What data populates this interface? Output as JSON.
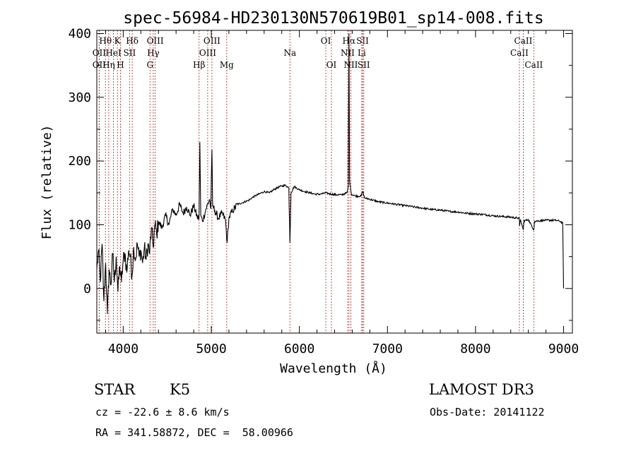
{
  "chart_data": {
    "type": "line",
    "title": "spec-56984-HD230130N570619B01_sp14-008.fits",
    "xlabel": "Wavelength (Å)",
    "ylabel": "Flux (relative)",
    "xlim": [
      3700,
      9100
    ],
    "ylim": [
      -70,
      405
    ],
    "x_ticks": [
      4000,
      5000,
      6000,
      7000,
      8000,
      9000
    ],
    "y_ticks": [
      0,
      100,
      200,
      300,
      400
    ],
    "spectrum_control_points": [
      [
        3700,
        30
      ],
      [
        3720,
        60
      ],
      [
        3740,
        10
      ],
      [
        3760,
        70
      ],
      [
        3780,
        -20
      ],
      [
        3800,
        40
      ],
      [
        3820,
        -40
      ],
      [
        3840,
        30
      ],
      [
        3860,
        5
      ],
      [
        3880,
        55
      ],
      [
        3900,
        10
      ],
      [
        3920,
        50
      ],
      [
        3940,
        -5
      ],
      [
        3960,
        35
      ],
      [
        3980,
        10
      ],
      [
        4000,
        45
      ],
      [
        4020,
        55
      ],
      [
        4040,
        25
      ],
      [
        4060,
        60
      ],
      [
        4080,
        50
      ],
      [
        4100,
        20
      ],
      [
        4120,
        65
      ],
      [
        4140,
        45
      ],
      [
        4160,
        70
      ],
      [
        4180,
        50
      ],
      [
        4200,
        60
      ],
      [
        4220,
        40
      ],
      [
        4240,
        65
      ],
      [
        4260,
        45
      ],
      [
        4280,
        70
      ],
      [
        4300,
        55
      ],
      [
        4320,
        95
      ],
      [
        4340,
        65
      ],
      [
        4360,
        100
      ],
      [
        4380,
        85
      ],
      [
        4400,
        105
      ],
      [
        4440,
        95
      ],
      [
        4480,
        115
      ],
      [
        4520,
        100
      ],
      [
        4560,
        125
      ],
      [
        4600,
        115
      ],
      [
        4640,
        132
      ],
      [
        4680,
        118
      ],
      [
        4720,
        128
      ],
      [
        4760,
        115
      ],
      [
        4800,
        130
      ],
      [
        4840,
        112
      ],
      [
        4860,
        110
      ],
      [
        4870,
        230
      ],
      [
        4880,
        115
      ],
      [
        4900,
        105
      ],
      [
        4940,
        125
      ],
      [
        4980,
        140
      ],
      [
        4995,
        125
      ],
      [
        5007,
        218
      ],
      [
        5015,
        130
      ],
      [
        5040,
        122
      ],
      [
        5080,
        110
      ],
      [
        5120,
        118
      ],
      [
        5160,
        108
      ],
      [
        5180,
        72
      ],
      [
        5200,
        110
      ],
      [
        5240,
        122
      ],
      [
        5300,
        132
      ],
      [
        5360,
        135
      ],
      [
        5420,
        138
      ],
      [
        5480,
        144
      ],
      [
        5540,
        148
      ],
      [
        5600,
        152
      ],
      [
        5660,
        150
      ],
      [
        5720,
        156
      ],
      [
        5780,
        160
      ],
      [
        5840,
        162
      ],
      [
        5880,
        158
      ],
      [
        5893,
        72
      ],
      [
        5905,
        150
      ],
      [
        5940,
        160
      ],
      [
        6000,
        155
      ],
      [
        6060,
        152
      ],
      [
        6120,
        150
      ],
      [
        6180,
        148
      ],
      [
        6240,
        148
      ],
      [
        6300,
        150
      ],
      [
        6360,
        148
      ],
      [
        6420,
        147
      ],
      [
        6480,
        147
      ],
      [
        6540,
        150
      ],
      [
        6555,
        160
      ],
      [
        6563,
        400
      ],
      [
        6570,
        170
      ],
      [
        6590,
        148
      ],
      [
        6640,
        145
      ],
      [
        6700,
        145
      ],
      [
        6720,
        152
      ],
      [
        6740,
        142
      ],
      [
        6800,
        140
      ],
      [
        6900,
        136
      ],
      [
        7000,
        134
      ],
      [
        7100,
        132
      ],
      [
        7200,
        130
      ],
      [
        7300,
        128
      ],
      [
        7400,
        126
      ],
      [
        7500,
        124
      ],
      [
        7600,
        123
      ],
      [
        7700,
        121
      ],
      [
        7800,
        120
      ],
      [
        7900,
        118
      ],
      [
        8000,
        117
      ],
      [
        8100,
        116
      ],
      [
        8200,
        114
      ],
      [
        8300,
        113
      ],
      [
        8400,
        112
      ],
      [
        8498,
        110
      ],
      [
        8500,
        98
      ],
      [
        8510,
        108
      ],
      [
        8542,
        92
      ],
      [
        8550,
        106
      ],
      [
        8600,
        108
      ],
      [
        8662,
        92
      ],
      [
        8670,
        105
      ],
      [
        8700,
        106
      ],
      [
        8800,
        107
      ],
      [
        8900,
        107
      ],
      [
        8950,
        106
      ],
      [
        8990,
        103
      ],
      [
        9000,
        0
      ]
    ],
    "line_markers": [
      {
        "name": "Hθ",
        "wave": 3798,
        "row": 0
      },
      {
        "name": "OII",
        "wave": 3727,
        "row": 1
      },
      {
        "name": "OII",
        "wave": 3727,
        "row": 2
      },
      {
        "name": "Hη",
        "wave": 3835,
        "row": 2
      },
      {
        "name": "HeI",
        "wave": 3889,
        "row": 1
      },
      {
        "name": "K",
        "wave": 3934,
        "row": 0
      },
      {
        "name": "H",
        "wave": 3969,
        "row": 2
      },
      {
        "name": "SII",
        "wave": 4072,
        "row": 1
      },
      {
        "name": "Hδ",
        "wave": 4102,
        "row": 0
      },
      {
        "name": "G",
        "wave": 4304,
        "row": 2
      },
      {
        "name": "Hγ",
        "wave": 4341,
        "row": 1
      },
      {
        "name": "OIII",
        "wave": 4363,
        "row": 0
      },
      {
        "name": "Hβ",
        "wave": 4861,
        "row": 2
      },
      {
        "name": "OIII",
        "wave": 4959,
        "row": 1
      },
      {
        "name": "OIII",
        "wave": 5007,
        "row": 0
      },
      {
        "name": "Mg",
        "wave": 5175,
        "row": 2
      },
      {
        "name": "Na",
        "wave": 5893,
        "row": 1
      },
      {
        "name": "OI",
        "wave": 6300,
        "row": 0
      },
      {
        "name": "OI",
        "wave": 6364,
        "row": 2
      },
      {
        "name": "NII",
        "wave": 6548,
        "row": 1
      },
      {
        "name": "Hα",
        "wave": 6563,
        "row": 0
      },
      {
        "name": "NII",
        "wave": 6584,
        "row": 2
      },
      {
        "name": "Li",
        "wave": 6708,
        "row": 1
      },
      {
        "name": "SII",
        "wave": 6717,
        "row": 0
      },
      {
        "name": "SII",
        "wave": 6731,
        "row": 2
      },
      {
        "name": "CaII",
        "wave": 8498,
        "row": 1
      },
      {
        "name": "CaII",
        "wave": 8542,
        "row": 0
      },
      {
        "name": "CaII",
        "wave": 8662,
        "row": 2
      }
    ],
    "colors": {
      "spectrum": "#000000",
      "markers": "#cc3333"
    }
  },
  "info": {
    "object_class": "STAR",
    "subclass": "K5",
    "survey": "LAMOST DR3",
    "redshift": "cz = -22.6 ± 8.6 km/s",
    "obs_date": "Obs-Date: 20141122",
    "coords": "RA = 341.58872, DEC =  58.00966"
  }
}
